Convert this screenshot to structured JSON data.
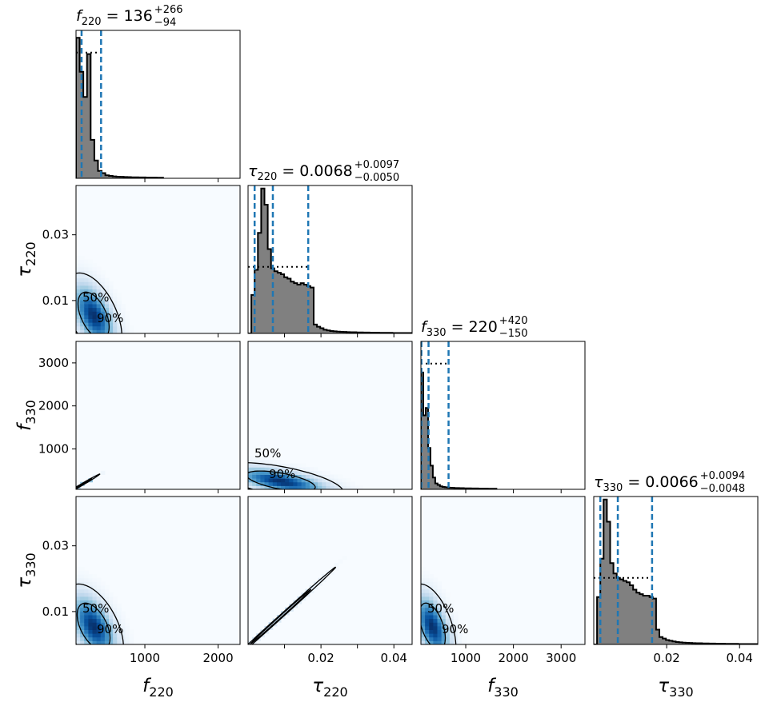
{
  "chart_data": {
    "type": "corner",
    "parameters": [
      {
        "key": "f220",
        "label_base": "f",
        "label_sub": "220",
        "range": [
          60,
          2300
        ],
        "title_value": "136",
        "title_plus": "+266",
        "title_minus": "−94",
        "quantiles": [
          42,
          136,
          402
        ],
        "ticks": [
          1000,
          2000
        ],
        "tick_labels": [
          "1000",
          "2000"
        ]
      },
      {
        "key": "tau220",
        "label_base": "τ",
        "label_sub": "220",
        "range": [
          0.0,
          0.045
        ],
        "title_value": "0.0068",
        "title_plus": "+0.0097",
        "title_minus": "−0.0050",
        "quantiles": [
          0.0018,
          0.0068,
          0.0165
        ],
        "ticks": [
          0.01,
          0.02,
          0.03,
          0.04
        ],
        "tick_labels": [
          "0.01",
          "0.02",
          "0.03",
          "0.04"
        ]
      },
      {
        "key": "f330",
        "label_base": "f",
        "label_sub": "330",
        "range": [
          60,
          3500
        ],
        "title_value": "220",
        "title_plus": "+420",
        "title_minus": "−150",
        "quantiles": [
          70,
          220,
          640
        ],
        "ticks": [
          1000,
          2000,
          3000
        ],
        "tick_labels": [
          "1000",
          "2000",
          "3000"
        ]
      },
      {
        "key": "tau330",
        "label_base": "τ",
        "label_sub": "330",
        "range": [
          0.0,
          0.045
        ],
        "title_value": "0.0066",
        "title_plus": "+0.0094",
        "title_minus": "−0.0048",
        "quantiles": [
          0.0018,
          0.0066,
          0.016
        ],
        "ticks": [
          0.02,
          0.04
        ],
        "tick_labels": [
          "0.02",
          "0.04"
        ]
      }
    ],
    "y_axis_ticks": {
      "tau220": {
        "ticks": [
          0.01,
          0.03
        ],
        "labels": [
          "0.01",
          "0.03"
        ]
      },
      "f330": {
        "ticks": [
          1000,
          2000,
          3000
        ],
        "labels": [
          "1000",
          "2000",
          "3000"
        ]
      },
      "tau330": {
        "ticks": [
          0.01,
          0.03
        ],
        "labels": [
          "0.01",
          "0.03"
        ]
      }
    },
    "diagonal_x_tick_labels": {
      "tau220": [
        0.02,
        0.04
      ],
      "tau330": [
        0.02,
        0.04
      ]
    },
    "histograms": {
      "f220": {
        "edges_start": 60,
        "bin_width": 50,
        "counts": [
          0.95,
          0.72,
          0.55,
          0.84,
          0.26,
          0.12,
          0.05,
          0.035,
          0.02,
          0.016,
          0.013,
          0.011,
          0.01,
          0.009,
          0.008,
          0.007,
          0.007,
          0.006,
          0.006,
          0.005,
          0.005,
          0.005,
          0.004,
          0.004
        ],
        "prior": 0.85
      },
      "tau220": {
        "edges_start": 0.0,
        "bin_width": 0.0009,
        "counts": [
          0.0,
          0.26,
          0.43,
          0.68,
          0.98,
          0.87,
          0.57,
          0.44,
          0.42,
          0.41,
          0.4,
          0.38,
          0.37,
          0.35,
          0.34,
          0.33,
          0.34,
          0.33,
          0.32,
          0.31,
          0.06,
          0.045,
          0.035,
          0.025,
          0.02,
          0.016,
          0.014,
          0.012,
          0.011,
          0.01,
          0.009,
          0.008,
          0.008,
          0.007,
          0.007,
          0.006,
          0.006,
          0.005,
          0.005,
          0.005,
          0.004,
          0.004,
          0.004,
          0.004,
          0.003,
          0.003,
          0.003,
          0.003,
          0.003,
          0.003
        ],
        "prior": 0.45
      },
      "f330": {
        "edges_start": 60,
        "bin_width": 50,
        "counts": [
          0.79,
          0.5,
          0.55,
          0.28,
          0.16,
          0.08,
          0.04,
          0.03,
          0.02,
          0.016,
          0.014,
          0.012,
          0.011,
          0.01,
          0.009,
          0.009,
          0.008,
          0.008,
          0.007,
          0.007,
          0.007,
          0.006,
          0.006,
          0.006,
          0.005,
          0.005,
          0.005,
          0.005,
          0.004,
          0.004,
          0.004,
          0.004
        ],
        "prior": 0.85
      },
      "tau330": {
        "edges_start": 0.0,
        "bin_width": 0.0009,
        "counts": [
          0.0,
          0.32,
          0.58,
          0.98,
          0.83,
          0.55,
          0.48,
          0.45,
          0.44,
          0.43,
          0.42,
          0.4,
          0.37,
          0.35,
          0.34,
          0.33,
          0.33,
          0.32,
          0.31,
          0.1,
          0.05,
          0.04,
          0.03,
          0.025,
          0.02,
          0.016,
          0.014,
          0.012,
          0.011,
          0.01,
          0.009,
          0.008,
          0.008,
          0.007,
          0.007,
          0.006,
          0.006,
          0.005,
          0.005,
          0.005,
          0.004,
          0.004,
          0.004,
          0.004,
          0.003,
          0.003,
          0.003,
          0.003,
          0.003,
          0.003
        ],
        "prior": 0.45
      }
    },
    "contour_levels": [
      "50%",
      "90%"
    ],
    "contours": {
      "tau220_f220": {
        "center": [
          300,
          0.0055
        ],
        "spread": [
          180,
          0.006
        ],
        "rho": -0.5,
        "labels": true
      },
      "f330_f220": {
        "center": [
          150,
          180
        ],
        "spread": [
          110,
          110
        ],
        "rho": 0.995,
        "labels": false
      },
      "f330_tau220": {
        "center": [
          0.009,
          250
        ],
        "spread": [
          0.008,
          200
        ],
        "rho": -0.6,
        "labels": true
      },
      "tau330_f220": {
        "center": [
          300,
          0.0055
        ],
        "spread": [
          190,
          0.006
        ],
        "rho": -0.5,
        "labels": true
      },
      "tau330_tau220": {
        "center": [
          0.009,
          0.0085
        ],
        "spread": [
          0.007,
          0.007
        ],
        "rho": 0.999,
        "labels": false
      },
      "tau330_f330": {
        "center": [
          300,
          0.0055
        ],
        "spread": [
          230,
          0.006
        ],
        "rho": -0.5,
        "labels": true
      }
    },
    "colors": {
      "hist_fill": "#808080",
      "hist_edge": "#000000",
      "quantile_line": "#1f77b4",
      "prior_line": "#000000",
      "density_light": "#f7fbff",
      "density_dark": "#08306b",
      "contour": "#000000"
    }
  }
}
